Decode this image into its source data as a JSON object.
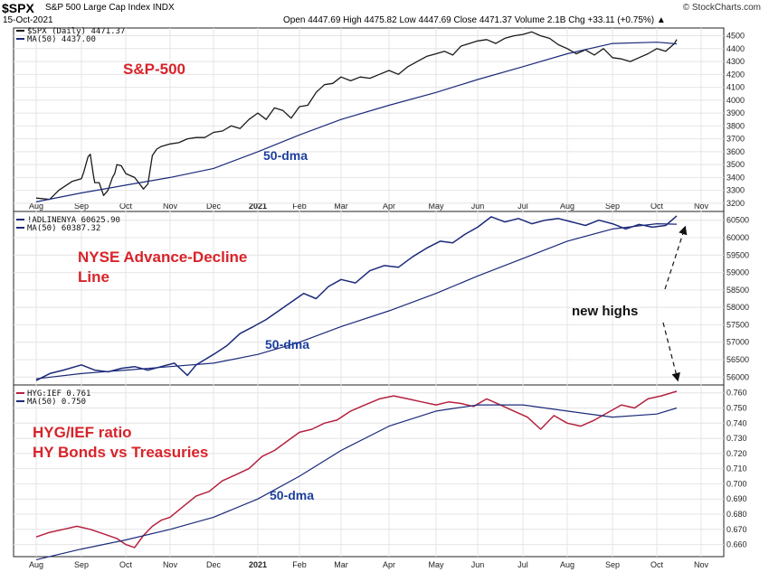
{
  "header": {
    "symbol": "$SPX",
    "name": "S&P 500 Large Cap Index INDX",
    "date": "15-Oct-2021",
    "credit": "© StockCharts.com",
    "ohlc": "Open 4447.69  High 4475.82  Low 4447.69  Close 4471.37  Volume 2.1B  Chg +33.11 (+0.75%) ▲"
  },
  "chart_data": [
    {
      "type": "line",
      "legend": [
        "$SPX (Daily) 4471.37",
        "MA(50) 4437.00"
      ],
      "annotations": [
        "S&P-500",
        "50-dma"
      ],
      "x_ticks": [
        "Aug",
        "Sep",
        "Oct",
        "Nov",
        "Dec",
        "2021",
        "Feb",
        "Mar",
        "Apr",
        "May",
        "Jun",
        "Jul",
        "Aug",
        "Sep",
        "Oct",
        "Nov"
      ],
      "y_ticks": [
        3200,
        3300,
        3400,
        3500,
        3600,
        3700,
        3800,
        3900,
        4000,
        4100,
        4200,
        4300,
        4400,
        4500
      ],
      "ylim": [
        3150,
        4560
      ],
      "series": [
        {
          "name": "$SPX",
          "color": "#1a1a1a",
          "x": [
            0,
            0.3,
            0.5,
            0.8,
            1,
            1.05,
            1.15,
            1.2,
            1.27,
            1.3,
            1.4,
            1.5,
            1.6,
            1.7,
            1.75,
            1.8,
            1.9,
            2,
            2.2,
            2.4,
            2.5,
            2.6,
            2.7,
            2.8,
            3,
            3.2,
            3.4,
            3.6,
            3.8,
            4,
            4.2,
            4.4,
            4.6,
            4.8,
            5,
            5.2,
            5.4,
            5.6,
            5.8,
            6,
            6.2,
            6.4,
            6.6,
            6.8,
            7,
            7.2,
            7.4,
            7.6,
            7.8,
            8,
            8.2,
            8.4,
            8.6,
            8.8,
            9,
            9.2,
            9.4,
            9.6,
            9.8,
            10,
            10.2,
            10.4,
            10.6,
            10.8,
            11,
            11.2,
            11.4,
            11.6,
            11.8,
            12,
            12.2,
            12.4,
            12.6,
            12.8,
            13,
            13.2,
            13.4,
            13.6,
            13.8,
            14,
            14.2,
            14.4,
            14.45
          ],
          "y": [
            3240,
            3230,
            3300,
            3370,
            3390,
            3440,
            3560,
            3580,
            3420,
            3360,
            3360,
            3260,
            3300,
            3400,
            3430,
            3500,
            3490,
            3430,
            3400,
            3310,
            3350,
            3570,
            3620,
            3640,
            3660,
            3670,
            3700,
            3710,
            3710,
            3750,
            3760,
            3800,
            3780,
            3850,
            3900,
            3850,
            3940,
            3920,
            3860,
            3950,
            3960,
            4060,
            4120,
            4130,
            4180,
            4150,
            4180,
            4170,
            4200,
            4230,
            4200,
            4260,
            4300,
            4340,
            4360,
            4380,
            4350,
            4420,
            4440,
            4460,
            4470,
            4440,
            4480,
            4500,
            4510,
            4530,
            4500,
            4480,
            4430,
            4400,
            4360,
            4390,
            4350,
            4400,
            4330,
            4320,
            4300,
            4330,
            4360,
            4400,
            4380,
            4440,
            4471
          ]
        },
        {
          "name": "MA(50)",
          "color": "#1c2a7a",
          "x": [
            0,
            1,
            2,
            3,
            4,
            5,
            6,
            7,
            8,
            9,
            10,
            11,
            12,
            13,
            14,
            14.45
          ],
          "y": [
            3210,
            3280,
            3340,
            3400,
            3470,
            3600,
            3730,
            3850,
            3960,
            4060,
            4160,
            4260,
            4360,
            4440,
            4450,
            4437
          ]
        }
      ]
    },
    {
      "type": "line",
      "legend": [
        "!ADLINENYA 60625.90",
        "MA(50) 60387.32"
      ],
      "annotations": [
        "NYSE Advance-Decline",
        "Line",
        "new highs",
        "50-dma"
      ],
      "y_ticks": [
        56000,
        56500,
        57000,
        57500,
        58000,
        58500,
        59000,
        59500,
        60000,
        60500
      ],
      "ylim": [
        55800,
        60700
      ],
      "series": [
        {
          "name": "!ADLINENYA",
          "color": "#1c2a7a",
          "x": [
            0,
            0.3,
            0.6,
            1,
            1.3,
            1.6,
            1.9,
            2.2,
            2.5,
            2.8,
            3.1,
            3.4,
            3.6,
            3.8,
            4,
            4.3,
            4.6,
            4.9,
            5.2,
            5.5,
            5.8,
            6.1,
            6.4,
            6.7,
            7,
            7.3,
            7.6,
            7.9,
            8.2,
            8.5,
            8.8,
            9.1,
            9.4,
            9.7,
            10,
            10.3,
            10.6,
            10.9,
            11.2,
            11.5,
            11.8,
            12.1,
            12.4,
            12.7,
            13,
            13.3,
            13.6,
            13.9,
            14.2,
            14.45
          ],
          "y": [
            55900,
            56100,
            56200,
            56350,
            56200,
            56150,
            56250,
            56300,
            56200,
            56300,
            56400,
            56050,
            56350,
            56500,
            56650,
            56900,
            57250,
            57450,
            57650,
            57900,
            58150,
            58400,
            58250,
            58600,
            58800,
            58700,
            59050,
            59200,
            59150,
            59450,
            59700,
            59900,
            59850,
            60100,
            60300,
            60600,
            60450,
            60550,
            60400,
            60500,
            60550,
            60450,
            60350,
            60500,
            60400,
            60250,
            60380,
            60300,
            60350,
            60626
          ]
        },
        {
          "name": "MA(50)",
          "color": "#1c2a7a",
          "x": [
            0,
            1,
            2,
            3,
            4,
            5,
            6,
            7,
            8,
            9,
            10,
            11,
            12,
            13,
            14,
            14.45
          ],
          "y": [
            55950,
            56100,
            56200,
            56300,
            56400,
            56650,
            57000,
            57450,
            57900,
            58400,
            58900,
            59400,
            59900,
            60250,
            60400,
            60387
          ]
        }
      ]
    },
    {
      "type": "line",
      "legend": [
        "HYG:IEF 0.761",
        "MA(50) 0.750"
      ],
      "annotations": [
        "HYG/IEF ratio",
        "HY Bonds vs Treasuries",
        "50-dma"
      ],
      "x_ticks": [
        "Aug",
        "Sep",
        "Oct",
        "Nov",
        "Dec",
        "2021",
        "Feb",
        "Mar",
        "Apr",
        "May",
        "Jun",
        "Jul",
        "Aug",
        "Sep",
        "Oct",
        "Nov"
      ],
      "y_ticks": [
        0.66,
        0.67,
        0.68,
        0.69,
        0.7,
        0.71,
        0.72,
        0.73,
        0.74,
        0.75,
        0.76
      ],
      "ylim": [
        0.652,
        0.764
      ],
      "series": [
        {
          "name": "HYG:IEF",
          "color": "#b5213f",
          "x": [
            0,
            0.3,
            0.6,
            0.9,
            1.2,
            1.5,
            1.8,
            2,
            2.2,
            2.4,
            2.6,
            2.8,
            3,
            3.3,
            3.6,
            3.9,
            4.2,
            4.5,
            4.8,
            5.1,
            5.4,
            5.7,
            6,
            6.3,
            6.6,
            6.9,
            7.2,
            7.5,
            7.8,
            8.1,
            8.4,
            8.7,
            9,
            9.3,
            9.6,
            9.9,
            10.2,
            10.5,
            10.8,
            11.1,
            11.4,
            11.7,
            12,
            12.3,
            12.6,
            12.9,
            13.2,
            13.5,
            13.8,
            14.1,
            14.45
          ],
          "y": [
            0.665,
            0.668,
            0.67,
            0.672,
            0.67,
            0.667,
            0.664,
            0.66,
            0.658,
            0.666,
            0.672,
            0.676,
            0.678,
            0.685,
            0.692,
            0.695,
            0.702,
            0.706,
            0.71,
            0.718,
            0.722,
            0.728,
            0.734,
            0.736,
            0.74,
            0.742,
            0.748,
            0.752,
            0.756,
            0.758,
            0.756,
            0.754,
            0.752,
            0.754,
            0.753,
            0.751,
            0.756,
            0.752,
            0.748,
            0.744,
            0.736,
            0.745,
            0.74,
            0.738,
            0.742,
            0.747,
            0.752,
            0.75,
            0.756,
            0.758,
            0.761
          ]
        },
        {
          "name": "MA(50)",
          "color": "#1c2a7a",
          "x": [
            0,
            1,
            2,
            3,
            4,
            5,
            6,
            7,
            8,
            9,
            10,
            11,
            12,
            13,
            14,
            14.45
          ],
          "y": [
            0.65,
            0.657,
            0.663,
            0.67,
            0.678,
            0.69,
            0.705,
            0.722,
            0.738,
            0.748,
            0.752,
            0.752,
            0.748,
            0.744,
            0.746,
            0.75
          ]
        }
      ]
    }
  ]
}
